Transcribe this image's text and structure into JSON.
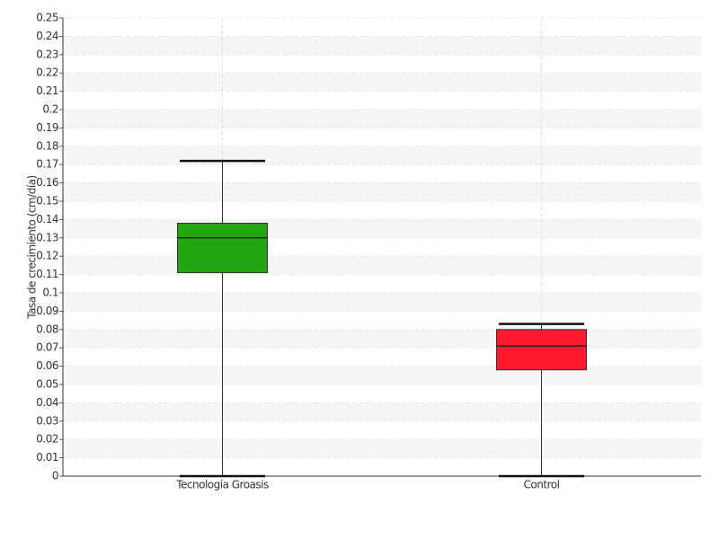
{
  "chart_data": {
    "type": "box",
    "y_label": "Tasa de crecimiento (cm/día)",
    "categories": [
      "Tecnología Groasis",
      "Control"
    ],
    "boxes": [
      {
        "min": 0,
        "q1": 0.111,
        "median": 0.13,
        "q3": 0.138,
        "max": 0.172,
        "color": "#22a511"
      },
      {
        "min": 0,
        "q1": 0.058,
        "median": 0.071,
        "q3": 0.08,
        "max": 0.083,
        "color": "#ff1a2e"
      }
    ],
    "ylim": [
      0,
      0.25
    ],
    "yticks": [
      0,
      0.01,
      0.02,
      0.03,
      0.04,
      0.05,
      0.06,
      0.07,
      0.08,
      0.09,
      0.1,
      0.11,
      0.12,
      0.13,
      0.14,
      0.15,
      0.16,
      0.17,
      0.18,
      0.19,
      0.2,
      0.21,
      0.22,
      0.23,
      0.24,
      0.25
    ],
    "grid": true
  }
}
